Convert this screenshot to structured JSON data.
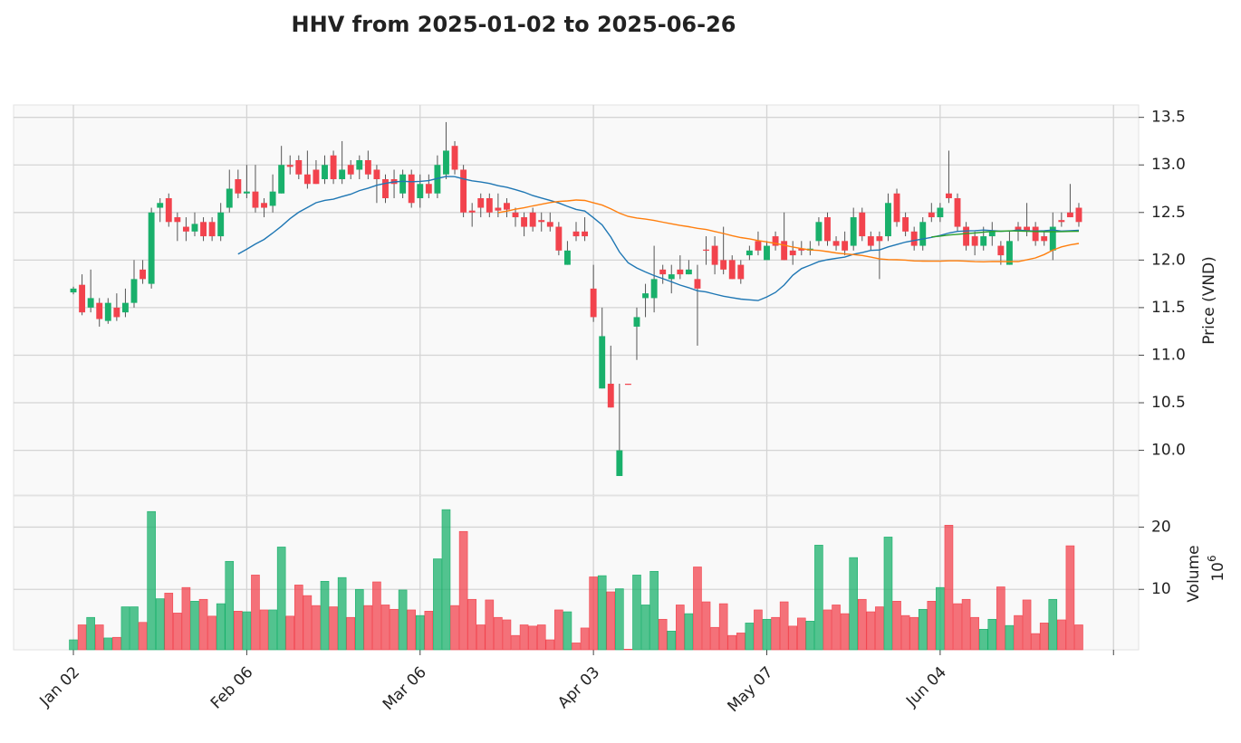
{
  "chart_data": {
    "type": "candlestick",
    "title": "HHV from 2025-01-02 to 2025-06-26",
    "ylabel": "Price (VND)",
    "volume_label": "Volume",
    "volume_scale_base": "10",
    "volume_scale_exponent": "6",
    "open": [
      11.66,
      11.74,
      11.5,
      11.55,
      11.36,
      11.5,
      11.45,
      11.55,
      11.9,
      11.75,
      12.55,
      12.65,
      12.45,
      12.35,
      12.3,
      12.4,
      12.4,
      12.25,
      12.55,
      12.85,
      12.7,
      12.72,
      12.6,
      12.57,
      12.7,
      13.0,
      13.05,
      12.9,
      12.95,
      12.85,
      13.1,
      12.85,
      13.0,
      12.95,
      13.05,
      12.95,
      12.85,
      12.85,
      12.7,
      12.9,
      12.65,
      12.8,
      12.7,
      12.9,
      13.2,
      12.95,
      12.52,
      12.65,
      12.65,
      12.55,
      12.6,
      12.5,
      12.45,
      12.5,
      12.42,
      12.4,
      12.35,
      11.95,
      12.3,
      12.3,
      11.7,
      10.65,
      10.7,
      9.73,
      10.7,
      11.3,
      11.6,
      11.6,
      11.9,
      11.8,
      11.9,
      11.85,
      11.8,
      12.11,
      12.15,
      12.0,
      12.0,
      11.95,
      12.05,
      12.2,
      12.0,
      12.25,
      12.2,
      12.1,
      12.12,
      12.1,
      12.2,
      12.45,
      12.2,
      12.2,
      12.15,
      12.5,
      12.25,
      12.25,
      12.25,
      12.7,
      12.45,
      12.3,
      12.15,
      12.5,
      12.45,
      12.7,
      12.65,
      12.35,
      12.25,
      12.15,
      12.25,
      12.15,
      11.95,
      12.35,
      12.35,
      12.35,
      12.25,
      12.1,
      12.42,
      12.5,
      12.55
    ],
    "high": [
      11.72,
      11.85,
      11.9,
      11.6,
      11.6,
      11.65,
      11.7,
      12.0,
      12.0,
      12.55,
      12.65,
      12.7,
      12.5,
      12.45,
      12.5,
      12.45,
      12.45,
      12.6,
      12.95,
      12.95,
      13.0,
      13.0,
      12.65,
      12.9,
      13.2,
      13.1,
      13.1,
      13.15,
      13.05,
      13.1,
      13.15,
      13.25,
      13.05,
      13.1,
      13.15,
      13.0,
      12.9,
      12.95,
      12.95,
      12.95,
      12.9,
      12.9,
      13.1,
      13.45,
      13.25,
      13.0,
      12.6,
      12.7,
      12.7,
      12.7,
      12.65,
      12.55,
      12.5,
      12.55,
      12.5,
      12.5,
      12.4,
      12.2,
      12.4,
      12.45,
      11.95,
      11.5,
      11.1,
      10.7,
      10.7,
      11.5,
      11.75,
      12.15,
      11.95,
      11.95,
      12.05,
      12.0,
      11.95,
      12.25,
      12.25,
      12.35,
      12.05,
      12.0,
      12.15,
      12.3,
      12.2,
      12.3,
      12.5,
      12.2,
      12.2,
      12.2,
      12.45,
      12.5,
      12.25,
      12.3,
      12.55,
      12.55,
      12.3,
      12.3,
      12.7,
      12.75,
      12.5,
      12.35,
      12.45,
      12.6,
      12.6,
      13.15,
      12.7,
      12.4,
      12.3,
      12.35,
      12.4,
      12.2,
      12.3,
      12.4,
      12.6,
      12.4,
      12.3,
      12.5,
      12.5,
      12.8,
      12.6
    ],
    "low": [
      11.64,
      11.42,
      11.45,
      11.3,
      11.33,
      11.36,
      11.4,
      11.5,
      11.75,
      11.7,
      12.4,
      12.35,
      12.2,
      12.2,
      12.25,
      12.2,
      12.2,
      12.2,
      12.5,
      12.65,
      12.65,
      12.5,
      12.45,
      12.5,
      12.7,
      12.9,
      12.85,
      12.75,
      12.8,
      12.8,
      12.8,
      12.8,
      12.85,
      12.85,
      12.85,
      12.6,
      12.6,
      12.65,
      12.65,
      12.55,
      12.55,
      12.65,
      12.65,
      12.85,
      12.9,
      12.45,
      12.35,
      12.45,
      12.45,
      12.45,
      12.45,
      12.35,
      12.25,
      12.3,
      12.3,
      12.3,
      12.05,
      11.95,
      12.2,
      12.2,
      11.35,
      10.65,
      10.45,
      9.73,
      10.69,
      10.95,
      11.4,
      11.45,
      11.75,
      11.65,
      11.8,
      11.85,
      11.1,
      11.95,
      11.85,
      11.85,
      11.8,
      11.75,
      12.0,
      12.05,
      12.0,
      12.1,
      12.0,
      11.95,
      12.05,
      12.05,
      12.15,
      12.15,
      12.1,
      12.05,
      12.1,
      12.2,
      12.1,
      11.8,
      12.2,
      12.35,
      12.25,
      12.1,
      12.1,
      12.4,
      12.4,
      12.6,
      12.3,
      12.1,
      12.05,
      12.1,
      12.15,
      11.95,
      11.95,
      12.2,
      12.25,
      12.15,
      12.15,
      12.0,
      12.35,
      12.45,
      12.35
    ],
    "close": [
      11.7,
      11.45,
      11.6,
      11.38,
      11.55,
      11.4,
      11.55,
      11.8,
      11.8,
      12.5,
      12.6,
      12.4,
      12.4,
      12.3,
      12.38,
      12.25,
      12.25,
      12.5,
      12.75,
      12.7,
      12.72,
      12.55,
      12.55,
      12.72,
      13.0,
      12.98,
      12.9,
      12.8,
      12.8,
      13.0,
      12.85,
      12.95,
      12.9,
      13.05,
      12.9,
      12.85,
      12.65,
      12.8,
      12.9,
      12.6,
      12.8,
      12.7,
      13.0,
      13.15,
      12.95,
      12.5,
      12.5,
      12.55,
      12.5,
      12.52,
      12.53,
      12.45,
      12.35,
      12.35,
      12.4,
      12.35,
      12.1,
      12.1,
      12.25,
      12.25,
      11.4,
      11.2,
      10.45,
      10.0,
      10.69,
      11.4,
      11.65,
      11.8,
      11.85,
      11.85,
      11.85,
      11.9,
      11.7,
      12.1,
      11.95,
      11.9,
      11.8,
      11.8,
      12.1,
      12.1,
      12.15,
      12.15,
      12.0,
      12.05,
      12.1,
      12.12,
      12.4,
      12.2,
      12.15,
      12.1,
      12.45,
      12.25,
      12.15,
      12.2,
      12.6,
      12.4,
      12.3,
      12.15,
      12.4,
      12.45,
      12.55,
      12.65,
      12.35,
      12.15,
      12.15,
      12.25,
      12.3,
      12.05,
      12.2,
      12.3,
      12.3,
      12.2,
      12.2,
      12.35,
      12.4,
      12.45,
      12.4
    ],
    "volume": [
      1.9,
      4.3,
      5.5,
      4.3,
      2.2,
      2.3,
      7.2,
      7.2,
      4.7,
      22.5,
      8.5,
      9.4,
      6.2,
      10.3,
      8.1,
      8.4,
      5.7,
      7.7,
      14.5,
      6.5,
      6.4,
      12.3,
      6.7,
      6.7,
      16.8,
      5.7,
      10.7,
      9.0,
      7.4,
      11.3,
      7.2,
      11.9,
      5.5,
      10.0,
      7.4,
      11.2,
      7.5,
      6.8,
      9.9,
      6.7,
      5.8,
      6.5,
      14.9,
      22.8,
      7.4,
      19.3,
      8.4,
      4.3,
      8.3,
      5.5,
      5.1,
      2.6,
      4.3,
      4.1,
      4.3,
      1.9,
      6.7,
      6.4,
      1.4,
      3.8,
      12.0,
      12.2,
      9.6,
      10.1,
      0.4,
      12.3,
      7.5,
      12.9,
      5.2,
      3.3,
      7.5,
      6.1,
      13.6,
      8.0,
      3.9,
      7.7,
      2.6,
      3.0,
      4.6,
      6.7,
      5.2,
      5.5,
      8.0,
      4.1,
      5.4,
      4.9,
      17.1,
      6.7,
      7.5,
      6.1,
      15.1,
      8.4,
      6.4,
      7.2,
      18.4,
      8.1,
      5.8,
      5.5,
      6.8,
      8.1,
      10.3,
      20.3,
      7.7,
      8.4,
      5.5,
      3.6,
      5.2,
      10.4,
      4.2,
      5.8,
      8.3,
      2.9,
      4.6,
      8.4,
      5.1,
      17.0,
      4.3
    ],
    "up_color": "#19b06b",
    "down_color": "#f2434d",
    "wick_color": "#555555",
    "mav": [
      20,
      50,
      100
    ],
    "mav_colors": [
      "#1f77b4",
      "#ff7f0e",
      "#2ca02c"
    ],
    "xlim": [
      -6.9,
      122.9
    ],
    "xticks": [
      {
        "value": 0,
        "label": "Jan 02"
      },
      {
        "value": 20,
        "label": "Feb 06"
      },
      {
        "value": 40,
        "label": "Mar 06"
      },
      {
        "value": 60,
        "label": "Apr 03"
      },
      {
        "value": 80,
        "label": "May 07"
      },
      {
        "value": 100,
        "label": "Jun 04"
      },
      {
        "value": 120,
        "label": null
      }
    ],
    "ylim": [
      9.53,
      13.63
    ],
    "yticks": [
      {
        "value": 10,
        "label": "10.0"
      },
      10.5,
      {
        "value": 11,
        "label": "11.0"
      },
      11.5,
      {
        "value": 12,
        "label": "12.0"
      },
      12.5,
      {
        "value": 13,
        "label": "13.0"
      },
      13.5
    ],
    "volume_ylim": [
      0.3,
      25
    ],
    "volume_yticks": [
      10,
      20
    ],
    "grid": true
  }
}
